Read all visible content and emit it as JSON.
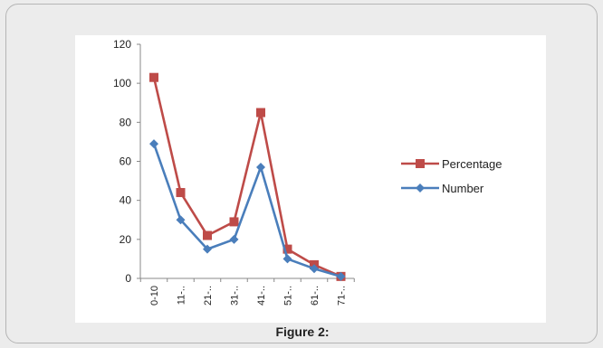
{
  "figure": {
    "caption": "Figure 2:"
  },
  "chart_data": {
    "type": "line",
    "categories": [
      "0-10",
      "11-...",
      "21-...",
      "31-...",
      "41-...",
      "51-...",
      "61-...",
      "71-..."
    ],
    "tick_labels": [
      "0-10",
      "11-..",
      "21-..",
      "31-..",
      "41-..",
      "51-..",
      "61-..",
      "71-.."
    ],
    "series": [
      {
        "name": "Percentage",
        "values": [
          103,
          44,
          22,
          29,
          85,
          15,
          7,
          1
        ],
        "color": "#be4b48",
        "marker": "square"
      },
      {
        "name": "Number",
        "values": [
          69,
          30,
          15,
          20,
          57,
          10,
          5,
          1
        ],
        "color": "#4a7ebb",
        "marker": "diamond"
      }
    ],
    "yticks": [
      0,
      20,
      40,
      60,
      80,
      100,
      120
    ],
    "ylim": [
      0,
      120
    ],
    "legend_position": "right",
    "grid": false
  }
}
